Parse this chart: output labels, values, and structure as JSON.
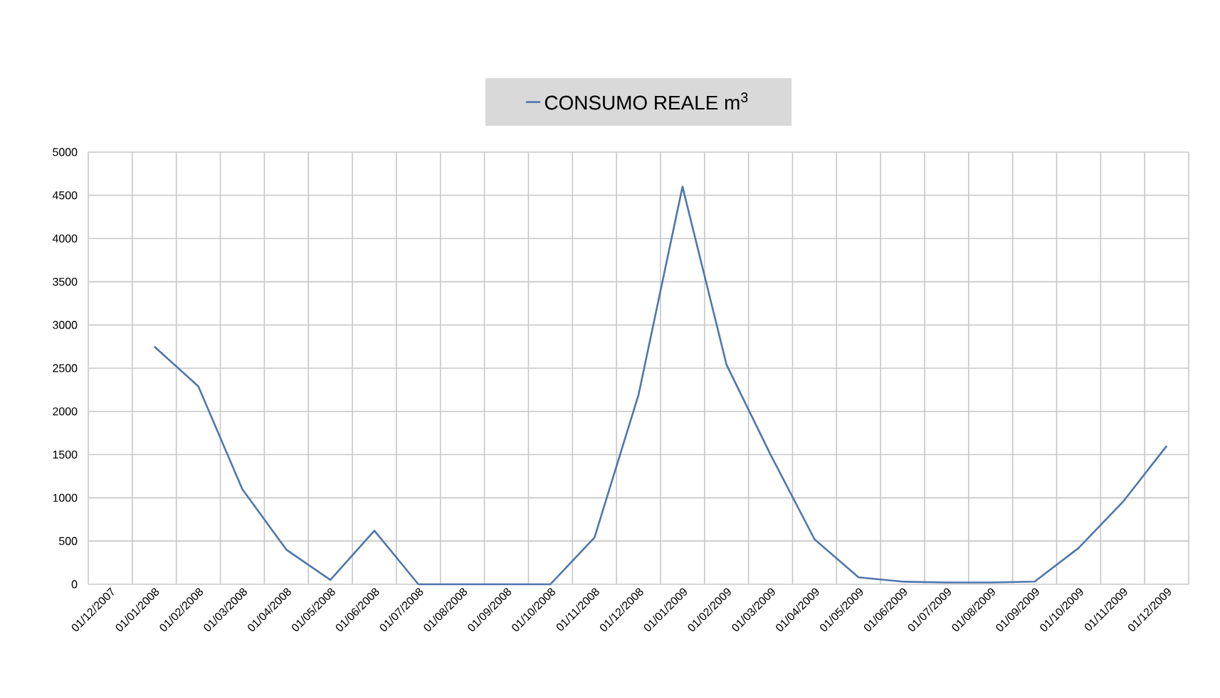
{
  "chart_data": {
    "type": "line",
    "categories": [
      "01/12/2007",
      "01/01/2008",
      "01/02/2008",
      "01/03/2008",
      "01/04/2008",
      "01/05/2008",
      "01/06/2008",
      "01/07/2008",
      "01/08/2008",
      "01/09/2008",
      "01/10/2008",
      "01/11/2008",
      "01/12/2008",
      "01/01/2009",
      "01/02/2009",
      "01/03/2009",
      "01/04/2009",
      "01/05/2009",
      "01/06/2009",
      "01/07/2009",
      "01/08/2009",
      "01/09/2009",
      "01/10/2009",
      "01/11/2009",
      "01/12/2009"
    ],
    "series": [
      {
        "name": "CONSUMO REALE      m$^{3}$",
        "color": "#4f76ad",
        "values": [
          null,
          2750,
          2290,
          1100,
          400,
          50,
          620,
          0,
          0,
          0,
          0,
          540,
          2190,
          4600,
          2540,
          1500,
          520,
          80,
          30,
          20,
          20,
          30,
          420,
          950,
          1600
        ]
      }
    ],
    "ylim": [
      0,
      5000
    ],
    "yticks": [
      0,
      500,
      1000,
      1500,
      2000,
      2500,
      3000,
      3500,
      4000,
      4500,
      5000
    ],
    "grid": true,
    "legend": "top",
    "marker": "none",
    "line_style": "solid"
  }
}
